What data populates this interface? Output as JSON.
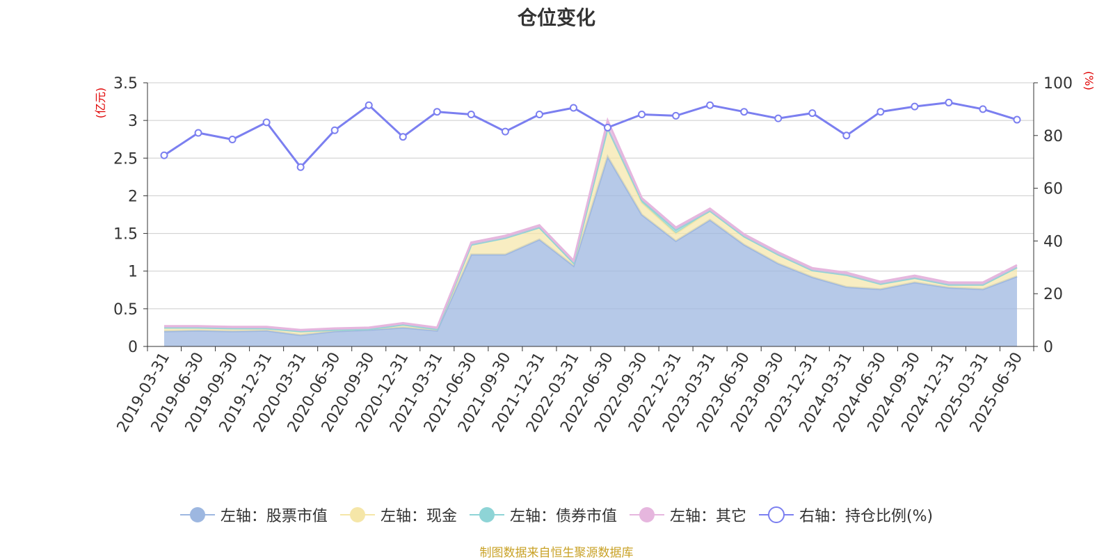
{
  "title": "仓位变化",
  "source_note": "制图数据来自恒生聚源数据库",
  "left_axis_unit": "(亿元)",
  "right_axis_unit": "(%)",
  "colors": {
    "stock": "#9db7e0",
    "cash": "#f5e6a8",
    "bond": "#8ed4d6",
    "other": "#e6b6de",
    "ratio": "#7b7ff0",
    "axis_unit": "#e00000",
    "source": "#c9a227"
  },
  "legend": [
    {
      "key": "stock",
      "label": "左轴：股票市值",
      "marker": "filled-circle"
    },
    {
      "key": "cash",
      "label": "左轴：现金",
      "marker": "filled-circle"
    },
    {
      "key": "bond",
      "label": "左轴：债券市值",
      "marker": "filled-circle"
    },
    {
      "key": "other",
      "label": "左轴：其它",
      "marker": "filled-circle"
    },
    {
      "key": "ratio",
      "label": "右轴：持仓比例(%)",
      "marker": "hollow-circle"
    }
  ],
  "chart_data": {
    "type": "area",
    "title": "仓位变化",
    "categories": [
      "2019-03-31",
      "2019-06-30",
      "2019-09-30",
      "2019-12-31",
      "2020-03-31",
      "2020-06-30",
      "2020-09-30",
      "2020-12-31",
      "2021-03-31",
      "2021-06-30",
      "2021-09-30",
      "2021-12-31",
      "2022-03-31",
      "2022-06-30",
      "2022-09-30",
      "2022-12-31",
      "2023-03-31",
      "2023-06-30",
      "2023-09-30",
      "2023-12-31",
      "2024-03-31",
      "2024-06-30",
      "2024-09-30",
      "2024-12-31",
      "2025-03-31",
      "2025-06-30"
    ],
    "y_left": {
      "label": "(亿元)",
      "range": [
        0,
        3.5
      ],
      "ticks": [
        "0",
        "0.5",
        "1",
        "1.5",
        "2",
        "2.5",
        "3",
        "3.5"
      ]
    },
    "y_right": {
      "label": "(%)",
      "range": [
        0,
        100
      ],
      "ticks": [
        "0",
        "20",
        "40",
        "60",
        "80",
        "100"
      ]
    },
    "grid": true,
    "legend_position": "bottom",
    "stacked_series": [
      {
        "key": "stock",
        "name": "左轴：股票市值",
        "axis": "left",
        "values": [
          0.2,
          0.21,
          0.2,
          0.21,
          0.15,
          0.2,
          0.22,
          0.25,
          0.21,
          1.22,
          1.22,
          1.42,
          1.07,
          2.52,
          1.75,
          1.4,
          1.68,
          1.35,
          1.1,
          0.92,
          0.79,
          0.76,
          0.85,
          0.78,
          0.76,
          0.93
        ]
      },
      {
        "key": "cash",
        "name": "左轴：现金",
        "axis": "left",
        "values": [
          0.05,
          0.04,
          0.04,
          0.03,
          0.05,
          0.02,
          0.01,
          0.04,
          0.02,
          0.13,
          0.22,
          0.16,
          0.04,
          0.38,
          0.16,
          0.1,
          0.12,
          0.11,
          0.12,
          0.09,
          0.16,
          0.07,
          0.06,
          0.04,
          0.06,
          0.12
        ]
      },
      {
        "key": "bond",
        "name": "左轴：债券市值",
        "axis": "left",
        "values": [
          0,
          0,
          0,
          0,
          0,
          0,
          0,
          0,
          0,
          0,
          0,
          0,
          0,
          0,
          0.03,
          0.05,
          0,
          0,
          0,
          0,
          0,
          0,
          0,
          0,
          0,
          0
        ]
      },
      {
        "key": "other",
        "name": "左轴：其它",
        "axis": "left",
        "values": [
          0.02,
          0.02,
          0.02,
          0.02,
          0.02,
          0.02,
          0.02,
          0.02,
          0.02,
          0.03,
          0.03,
          0.03,
          0.03,
          0.1,
          0.03,
          0.03,
          0.03,
          0.03,
          0.03,
          0.03,
          0.03,
          0.03,
          0.03,
          0.03,
          0.03,
          0.03
        ]
      }
    ],
    "line_series": {
      "key": "ratio",
      "name": "右轴：持仓比例(%)",
      "axis": "right",
      "values": [
        72.5,
        81,
        78.5,
        85,
        68,
        82,
        91.5,
        79.5,
        89,
        88,
        81.5,
        88,
        90.5,
        83,
        88,
        87.5,
        91.5,
        89,
        86.5,
        88.5,
        80,
        89,
        91,
        92.5,
        90,
        86
      ]
    }
  }
}
